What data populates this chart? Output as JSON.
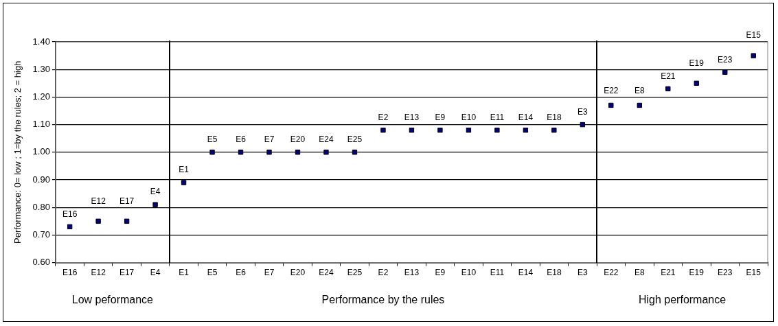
{
  "chart_data": {
    "type": "scatter",
    "ylabel": "Performance: 0= low ; 1=by the rules; 2 = high",
    "categories": [
      "E16",
      "E12",
      "E17",
      "E4",
      "E1",
      "E5",
      "E6",
      "E7",
      "E20",
      "E24",
      "E25",
      "E2",
      "E13",
      "E9",
      "E10",
      "E11",
      "E14",
      "E18",
      "E3",
      "E22",
      "E8",
      "E21",
      "E19",
      "E23",
      "E15"
    ],
    "values": [
      0.73,
      0.75,
      0.75,
      0.81,
      0.89,
      1.0,
      1.0,
      1.0,
      1.0,
      1.0,
      1.0,
      1.08,
      1.08,
      1.08,
      1.08,
      1.08,
      1.08,
      1.08,
      1.1,
      1.17,
      1.17,
      1.23,
      1.25,
      1.29,
      1.35
    ],
    "value_labels": [
      "E16",
      "E12",
      "E17",
      "E4",
      "E1",
      "E5",
      "E6",
      "E7",
      "E20",
      "E24",
      "E25",
      "E2",
      "E13",
      "E9",
      "E10",
      "E11",
      "E14",
      "E18",
      "E3",
      "E22",
      "E8",
      "E21",
      "E19",
      "E23",
      "E15"
    ],
    "color": "#000080",
    "marker": "square",
    "ylim": [
      0.6,
      1.4
    ],
    "yticks": [
      {
        "value": 0.6,
        "label": "0.60"
      },
      {
        "value": 0.7,
        "label": "0.70"
      },
      {
        "value": 0.8,
        "label": "0.80"
      },
      {
        "value": 0.9,
        "label": "0.90"
      },
      {
        "value": 1.0,
        "label": "1.00"
      },
      {
        "value": 1.1,
        "label": "1.10"
      },
      {
        "value": 1.2,
        "label": "1.20"
      },
      {
        "value": 1.3,
        "label": "1.30"
      },
      {
        "value": 1.4,
        "label": "1.40"
      }
    ],
    "grid": "y",
    "legend": false,
    "annotations": [
      "Low peformance",
      "Performance by the rules",
      "High performance"
    ]
  }
}
